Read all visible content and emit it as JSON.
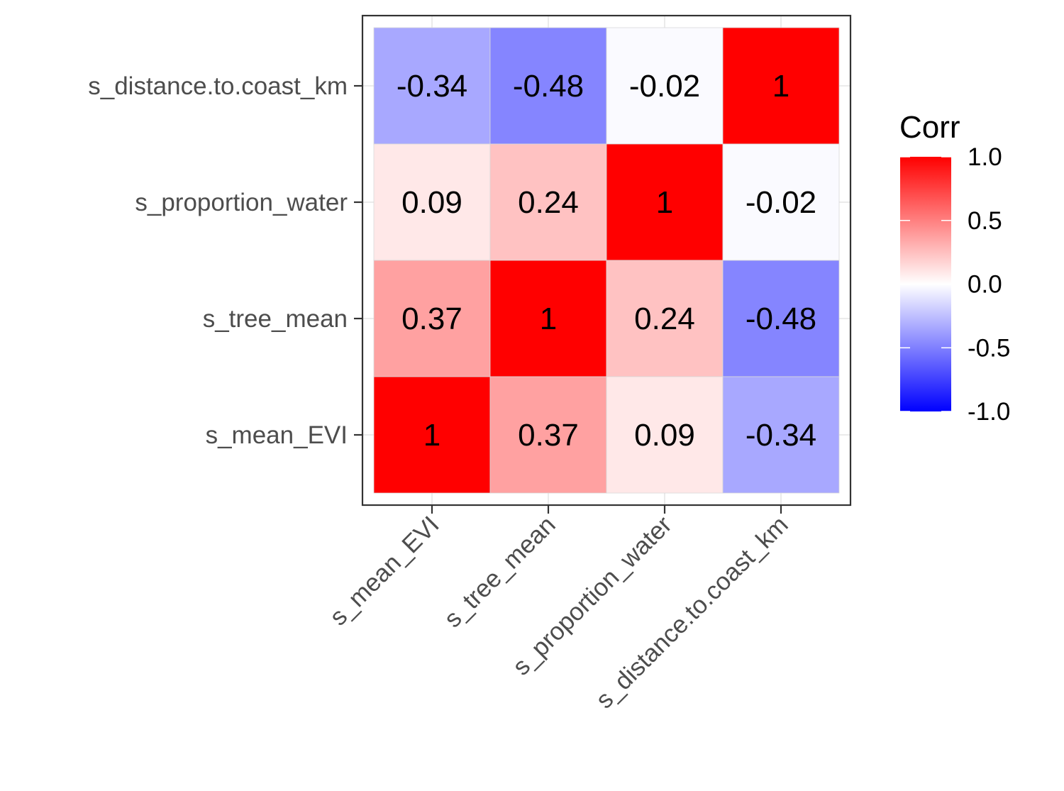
{
  "chart_data": {
    "type": "heatmap",
    "variables": [
      "s_mean_EVI",
      "s_tree_mean",
      "s_proportion_water",
      "s_distance.to.coast_km"
    ],
    "matrix": [
      [
        1,
        0.37,
        0.09,
        -0.34
      ],
      [
        0.37,
        1,
        0.24,
        -0.48
      ],
      [
        0.09,
        0.24,
        1,
        -0.02
      ],
      [
        -0.34,
        -0.48,
        -0.02,
        1
      ]
    ],
    "legend": {
      "title": "Corr",
      "range": [
        -1.0,
        1.0
      ],
      "ticks": [
        "1.0",
        "0.5",
        "0.0",
        "-0.5",
        "-1.0"
      ],
      "tick_values": [
        1.0,
        0.5,
        0.0,
        -0.5,
        -1.0
      ]
    },
    "colors": {
      "low": "#0000FF",
      "mid": "#FFFFFF",
      "high": "#FF0000"
    },
    "grid": true,
    "legend_position": "right"
  }
}
